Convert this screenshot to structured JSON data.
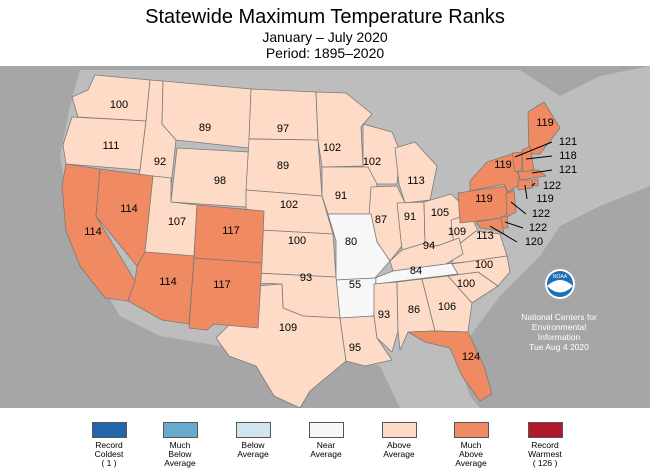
{
  "header": {
    "title": "Statewide Maximum Temperature Ranks",
    "subtitle": "January – July 2020",
    "period": "Period: 1895–2020"
  },
  "map": {
    "background_color": "#a6a6a6",
    "border_color": "#7a7a7a",
    "credit": {
      "line1": "National Centers for",
      "line2": "Environmental",
      "line3": "Information",
      "line4": "Tue Aug  4 2020"
    },
    "logo_text": "NOAA",
    "states": [
      {
        "state": "Washington",
        "rank": "100",
        "category": "above"
      },
      {
        "state": "Oregon",
        "rank": "111",
        "category": "above"
      },
      {
        "state": "Idaho",
        "rank": "92",
        "category": "above"
      },
      {
        "state": "Montana",
        "rank": "89",
        "category": "above"
      },
      {
        "state": "Wyoming",
        "rank": "98",
        "category": "above"
      },
      {
        "state": "North Dakota",
        "rank": "97",
        "category": "above"
      },
      {
        "state": "South Dakota",
        "rank": "89",
        "category": "above"
      },
      {
        "state": "Nebraska",
        "rank": "102",
        "category": "above"
      },
      {
        "state": "Kansas",
        "rank": "100",
        "category": "above"
      },
      {
        "state": "Minnesota",
        "rank": "102",
        "category": "above"
      },
      {
        "state": "Wisconsin",
        "rank": "102",
        "category": "above"
      },
      {
        "state": "Iowa",
        "rank": "91",
        "category": "above"
      },
      {
        "state": "Michigan",
        "rank": "113",
        "category": "above"
      },
      {
        "state": "Illinois",
        "rank": "87",
        "category": "above"
      },
      {
        "state": "Indiana",
        "rank": "91",
        "category": "above"
      },
      {
        "state": "Ohio",
        "rank": "105",
        "category": "above"
      },
      {
        "state": "West Virginia",
        "rank": "109",
        "category": "above"
      },
      {
        "state": "Virginia",
        "rank": "113",
        "category": "above"
      },
      {
        "state": "Kentucky",
        "rank": "94",
        "category": "above"
      },
      {
        "state": "Tennessee",
        "rank": "84",
        "category": "near"
      },
      {
        "state": "Missouri",
        "rank": "80",
        "category": "near"
      },
      {
        "state": "Arkansas",
        "rank": "55",
        "category": "near"
      },
      {
        "state": "Oklahoma",
        "rank": "93",
        "category": "above"
      },
      {
        "state": "Texas",
        "rank": "109",
        "category": "above"
      },
      {
        "state": "Louisiana",
        "rank": "95",
        "category": "above"
      },
      {
        "state": "Mississippi",
        "rank": "93",
        "category": "above"
      },
      {
        "state": "Alabama",
        "rank": "86",
        "category": "above"
      },
      {
        "state": "Georgia",
        "rank": "106",
        "category": "above"
      },
      {
        "state": "South Carolina",
        "rank": "100",
        "category": "above"
      },
      {
        "state": "North Carolina",
        "rank": "100",
        "category": "above"
      },
      {
        "state": "Florida",
        "rank": "124",
        "category": "much-above"
      },
      {
        "state": "California",
        "rank": "114",
        "category": "much-above"
      },
      {
        "state": "Nevada",
        "rank": "114",
        "category": "much-above"
      },
      {
        "state": "Utah",
        "rank": "107",
        "category": "above"
      },
      {
        "state": "Arizona",
        "rank": "114",
        "category": "much-above"
      },
      {
        "state": "Colorado",
        "rank": "117",
        "category": "much-above"
      },
      {
        "state": "New Mexico",
        "rank": "117",
        "category": "much-above"
      },
      {
        "state": "New York",
        "rank": "119",
        "category": "much-above"
      },
      {
        "state": "Pennsylvania",
        "rank": "119",
        "category": "much-above"
      },
      {
        "state": "Maine",
        "rank": "119",
        "category": "much-above"
      },
      {
        "state": "Vermont",
        "rank": "121",
        "category": "much-above"
      },
      {
        "state": "New Hampshire",
        "rank": "118",
        "category": "much-above"
      },
      {
        "state": "Massachusetts",
        "rank": "121",
        "category": "much-above"
      },
      {
        "state": "Rhode Island",
        "rank": "122",
        "category": "much-above"
      },
      {
        "state": "Connecticut",
        "rank": "119",
        "category": "much-above"
      },
      {
        "state": "New Jersey",
        "rank": "122",
        "category": "much-above"
      },
      {
        "state": "Delaware",
        "rank": "122",
        "category": "much-above"
      },
      {
        "state": "Maryland",
        "rank": "120",
        "category": "much-above"
      }
    ]
  },
  "legend": [
    {
      "label": "Record\nColdest\n( 1 )",
      "color": "#2166ac"
    },
    {
      "label": "Much\nBelow\nAverage",
      "color": "#67a9cf"
    },
    {
      "label": "Below\nAverage",
      "color": "#d1e5f0"
    },
    {
      "label": "Near\nAverage",
      "color": "#f7f7f7"
    },
    {
      "label": "Above\nAverage",
      "color": "#fddbc7"
    },
    {
      "label": "Much\nAbove\nAverage",
      "color": "#ef8a62"
    },
    {
      "label": "Record\nWarmest\n( 126 )",
      "color": "#b2182b"
    }
  ]
}
